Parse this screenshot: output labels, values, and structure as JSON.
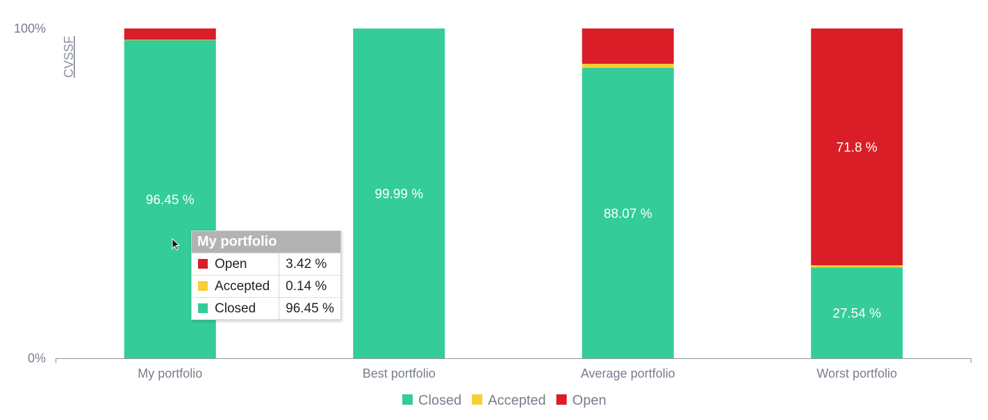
{
  "chart_data": {
    "type": "bar",
    "stacked": true,
    "normalized": true,
    "categories": [
      "My portfolio",
      "Best portfolio",
      "Average portfolio",
      "Worst portfolio"
    ],
    "series": [
      {
        "name": "Closed",
        "color": "#34cc99",
        "values": [
          96.45,
          99.99,
          88.07,
          27.54
        ],
        "labels": [
          "96.45 %",
          "99.99 %",
          "88.07 %",
          "27.54 %"
        ]
      },
      {
        "name": "Accepted",
        "color": "#f9cd34",
        "values": [
          0.14,
          0.0,
          1.21,
          0.66
        ],
        "labels": [
          "",
          "",
          "",
          ""
        ]
      },
      {
        "name": "Open",
        "color": "#da1e28",
        "values": [
          3.42,
          0.01,
          10.72,
          71.8
        ],
        "labels": [
          "",
          "",
          "",
          "71.8 %"
        ]
      }
    ],
    "ylabel": "CVSSF",
    "yticks": [
      "0%",
      "100%"
    ],
    "ylim": [
      0,
      100
    ],
    "legend_position": "bottom"
  },
  "tooltip": {
    "title": "My portfolio",
    "rows": [
      {
        "name": "Open",
        "value": "3.42 %",
        "color": "#da1e28"
      },
      {
        "name": "Accepted",
        "value": "0.14 %",
        "color": "#f9cd34"
      },
      {
        "name": "Closed",
        "value": "96.45 %",
        "color": "#34cc99"
      }
    ]
  }
}
